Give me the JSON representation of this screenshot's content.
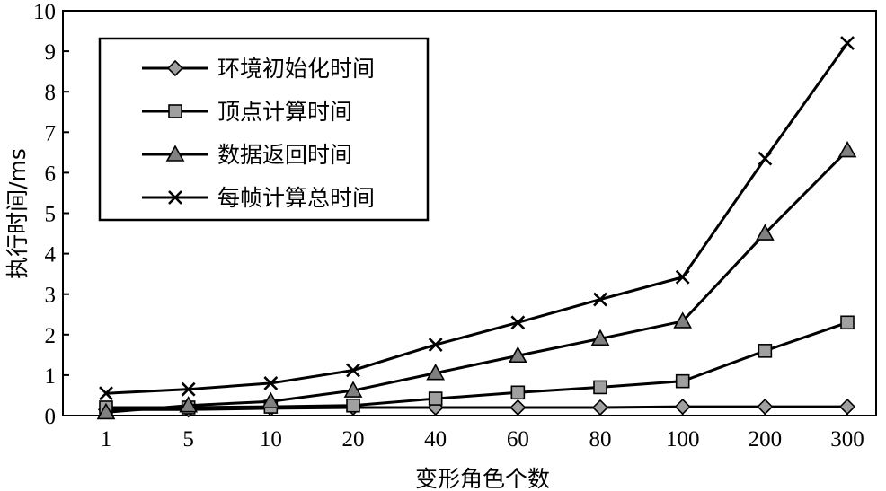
{
  "chart_data": {
    "type": "line",
    "categories": [
      "1",
      "5",
      "10",
      "20",
      "40",
      "60",
      "80",
      "100",
      "200",
      "300"
    ],
    "ylim": [
      0,
      10
    ],
    "yticks": [
      "0",
      "1",
      "2",
      "3",
      "4",
      "5",
      "6",
      "7",
      "8",
      "9",
      "10"
    ],
    "xlabel": "变形角色个数",
    "ylabel": "执行时间/ms",
    "legend_position": "top-left",
    "grid": false,
    "series": [
      {
        "name": "环境初始化时间",
        "marker": "diamond",
        "fill": "#a0a0a0",
        "values": [
          0.15,
          0.15,
          0.18,
          0.2,
          0.2,
          0.2,
          0.2,
          0.22,
          0.22,
          0.22
        ]
      },
      {
        "name": "顶点计算时间",
        "marker": "square",
        "fill": "#a0a0a0",
        "values": [
          0.2,
          0.2,
          0.22,
          0.25,
          0.42,
          0.57,
          0.7,
          0.85,
          1.6,
          2.3
        ]
      },
      {
        "name": "数据返回时间",
        "marker": "triangle",
        "fill": "#808080",
        "values": [
          0.08,
          0.25,
          0.35,
          0.62,
          1.05,
          1.48,
          1.9,
          2.33,
          4.5,
          6.55
        ]
      },
      {
        "name": "每帧计算总时间",
        "marker": "x",
        "fill": "#000000",
        "values": [
          0.55,
          0.65,
          0.8,
          1.12,
          1.75,
          2.3,
          2.87,
          3.42,
          6.35,
          9.2
        ]
      }
    ]
  }
}
